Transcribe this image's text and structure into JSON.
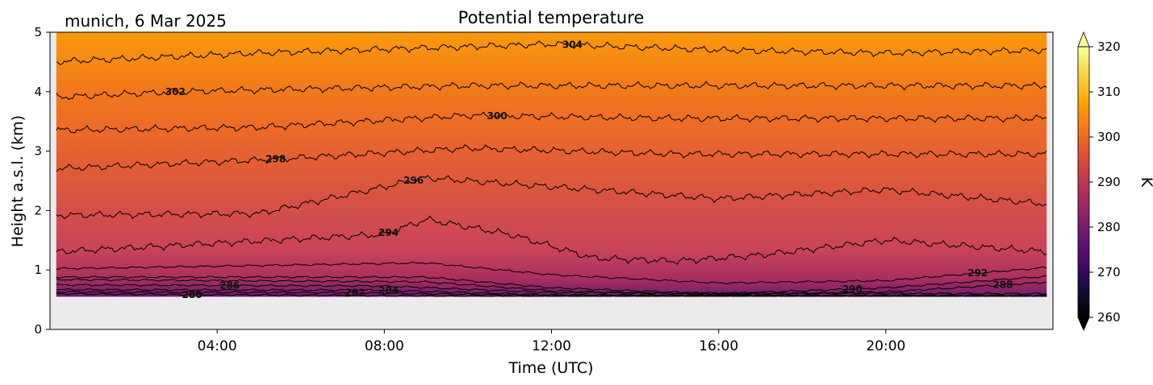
{
  "station_label": "munich, 6 Mar 2025",
  "chart_data": {
    "type": "heatmap",
    "title": "Potential temperature",
    "xlabel": "Time (UTC)",
    "ylabel": "Height a.s.l. (km)",
    "x_unit": "hours UTC",
    "xlim": [
      0,
      24
    ],
    "ylim": [
      0,
      5
    ],
    "x_ticks": [
      {
        "value": 4,
        "label": "04:00"
      },
      {
        "value": 8,
        "label": "08:00"
      },
      {
        "value": 12,
        "label": "12:00"
      },
      {
        "value": 16,
        "label": "16:00"
      },
      {
        "value": 20,
        "label": "20:00"
      }
    ],
    "y_ticks": [
      0,
      1,
      2,
      3,
      4,
      5
    ],
    "data_x_range": [
      0.15,
      23.85
    ],
    "data_lowest_height_km": 0.55,
    "missing_data_color": "#ebebeb",
    "colorbar": {
      "label": "K",
      "colormap": "inferno",
      "vmin": 260,
      "vmax": 320,
      "ticks": [
        260,
        270,
        280,
        290,
        300,
        310,
        320
      ],
      "extend": "both"
    },
    "isentropes": [
      {
        "theta": 280,
        "height_km": [
          [
            0,
            0.6
          ],
          [
            12,
            0.55
          ],
          [
            24,
            0.55
          ]
        ],
        "labels": [
          {
            "x": 3.4,
            "text": "280"
          }
        ]
      },
      {
        "theta": 282,
        "height_km": [
          [
            0,
            0.63
          ],
          [
            7,
            0.62
          ],
          [
            12,
            0.57
          ],
          [
            24,
            0.56
          ]
        ],
        "labels": [
          {
            "x": 7.3,
            "text": "282"
          }
        ]
      },
      {
        "theta": 284,
        "height_km": [
          [
            0,
            0.67
          ],
          [
            8,
            0.66
          ],
          [
            12,
            0.58
          ],
          [
            24,
            0.57
          ]
        ],
        "labels": [
          {
            "x": 8.1,
            "text": "284"
          }
        ]
      },
      {
        "theta": 286,
        "height_km": [
          [
            0,
            0.75
          ],
          [
            8,
            0.73
          ],
          [
            12,
            0.62
          ],
          [
            24,
            0.6
          ]
        ],
        "labels": [
          {
            "x": 4.3,
            "text": "286"
          }
        ]
      },
      {
        "theta": 288,
        "height_km": [
          [
            0,
            0.84
          ],
          [
            9,
            0.8
          ],
          [
            12,
            0.65
          ],
          [
            16,
            0.58
          ],
          [
            20,
            0.63
          ],
          [
            24,
            0.8
          ]
        ],
        "labels": [
          {
            "x": 22.8,
            "text": "288"
          }
        ]
      },
      {
        "theta": 290,
        "height_km": [
          [
            0,
            0.88
          ],
          [
            9,
            0.88
          ],
          [
            12,
            0.7
          ],
          [
            16,
            0.6
          ],
          [
            20,
            0.7
          ],
          [
            24,
            0.9
          ]
        ],
        "labels": [
          {
            "x": 19.2,
            "text": "290"
          }
        ]
      },
      {
        "theta": 292,
        "height_km": [
          [
            0,
            1.02
          ],
          [
            9,
            1.12
          ],
          [
            12,
            0.92
          ],
          [
            16,
            0.78
          ],
          [
            20,
            0.82
          ],
          [
            24,
            1.05
          ]
        ],
        "labels": [
          {
            "x": 22.2,
            "text": "292"
          }
        ]
      },
      {
        "theta": 294,
        "height_km": [
          [
            0,
            1.3
          ],
          [
            8,
            1.6
          ],
          [
            9,
            1.85
          ],
          [
            11,
            1.6
          ],
          [
            13,
            1.2
          ],
          [
            15,
            1.15
          ],
          [
            17,
            1.25
          ],
          [
            20,
            1.5
          ],
          [
            24,
            1.3
          ]
        ],
        "labels": [
          {
            "x": 8.1,
            "text": "294"
          }
        ]
      },
      {
        "theta": 296,
        "height_km": [
          [
            0,
            1.92
          ],
          [
            5,
            1.95
          ],
          [
            9,
            2.55
          ],
          [
            12,
            2.4
          ],
          [
            16,
            2.2
          ],
          [
            20,
            2.35
          ],
          [
            24,
            2.1
          ]
        ],
        "labels": [
          {
            "x": 8.7,
            "text": "296"
          }
        ]
      },
      {
        "theta": 298,
        "height_km": [
          [
            0,
            2.7
          ],
          [
            5,
            2.85
          ],
          [
            10,
            3.05
          ],
          [
            15,
            2.95
          ],
          [
            20,
            2.95
          ],
          [
            24,
            2.95
          ]
        ],
        "labels": [
          {
            "x": 5.4,
            "text": "298"
          }
        ]
      },
      {
        "theta": 300,
        "height_km": [
          [
            0,
            3.35
          ],
          [
            5,
            3.4
          ],
          [
            10,
            3.6
          ],
          [
            15,
            3.55
          ],
          [
            20,
            3.55
          ],
          [
            24,
            3.55
          ]
        ],
        "labels": [
          {
            "x": 10.7,
            "text": "300"
          }
        ]
      },
      {
        "theta": 302,
        "height_km": [
          [
            0,
            3.9
          ],
          [
            3,
            4.0
          ],
          [
            10,
            4.1
          ],
          [
            15,
            4.1
          ],
          [
            20,
            4.1
          ],
          [
            24,
            4.1
          ]
        ],
        "labels": [
          {
            "x": 3.0,
            "text": "302"
          }
        ]
      },
      {
        "theta": 304,
        "height_km": [
          [
            0,
            4.5
          ],
          [
            5,
            4.65
          ],
          [
            12,
            4.8
          ],
          [
            16,
            4.7
          ],
          [
            20,
            4.65
          ],
          [
            24,
            4.7
          ]
        ],
        "labels": [
          {
            "x": 12.5,
            "text": "304"
          }
        ]
      }
    ]
  }
}
